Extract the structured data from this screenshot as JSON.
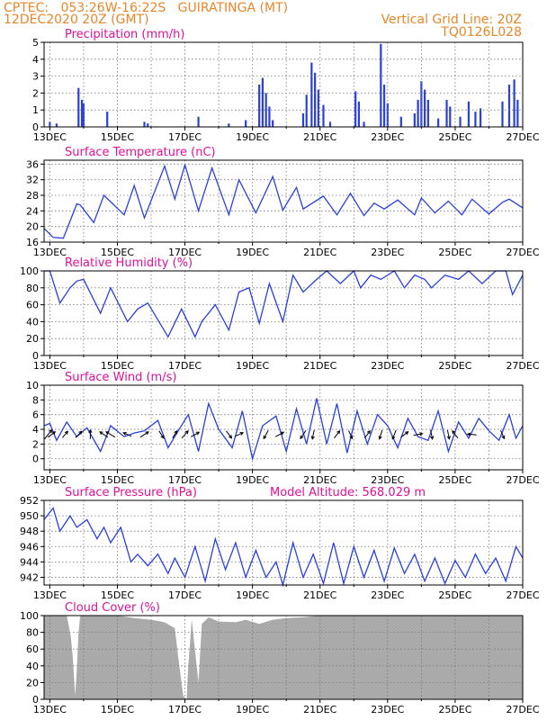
{
  "header": {
    "left_line1": "CPTEC:   053:26W-16:22S   GUIRATINGA (MT)",
    "left_line2": "12DEC2020 20Z (GMT)",
    "right_line1": "Vertical Grid Line: 20Z",
    "right_line2": "TQ0126L028"
  },
  "colors": {
    "series": "#2a3fe0",
    "bars": "#2a3fe0",
    "cloud": "#aaaaaa",
    "title": "#e0109a",
    "header": "#e8862a"
  },
  "chart_data": [
    {
      "type": "bar",
      "title": "Precipitation (mm/h)",
      "x_tick_labels": [
        "13DEC",
        "15DEC",
        "17DEC",
        "19DEC",
        "21DEC",
        "23DEC",
        "25DEC",
        "27DEC"
      ],
      "xlim_days": [
        12.83,
        27.0
      ],
      "ylim": [
        0,
        5
      ],
      "yticks": [
        0,
        1,
        2,
        3,
        4,
        5
      ],
      "grid": true,
      "bars": [
        [
          13.0,
          0.3
        ],
        [
          13.2,
          0.2
        ],
        [
          13.85,
          2.3
        ],
        [
          13.95,
          1.6
        ],
        [
          14.0,
          1.4
        ],
        [
          14.7,
          0.9
        ],
        [
          15.8,
          0.3
        ],
        [
          15.9,
          0.2
        ],
        [
          17.4,
          0.6
        ],
        [
          18.3,
          0.2
        ],
        [
          18.8,
          0.4
        ],
        [
          19.2,
          2.5
        ],
        [
          19.3,
          2.9
        ],
        [
          19.4,
          2.0
        ],
        [
          19.5,
          1.2
        ],
        [
          19.6,
          0.4
        ],
        [
          20.5,
          0.8
        ],
        [
          20.6,
          1.9
        ],
        [
          20.75,
          3.8
        ],
        [
          20.85,
          3.2
        ],
        [
          20.95,
          2.2
        ],
        [
          21.1,
          1.3
        ],
        [
          21.3,
          0.3
        ],
        [
          22.05,
          2.1
        ],
        [
          22.15,
          1.5
        ],
        [
          22.3,
          0.3
        ],
        [
          22.8,
          4.9
        ],
        [
          22.9,
          2.5
        ],
        [
          23.0,
          1.4
        ],
        [
          23.4,
          0.6
        ],
        [
          23.8,
          0.8
        ],
        [
          23.9,
          1.6
        ],
        [
          24.0,
          2.7
        ],
        [
          24.1,
          2.2
        ],
        [
          24.2,
          1.6
        ],
        [
          24.5,
          0.5
        ],
        [
          24.75,
          1.6
        ],
        [
          24.85,
          1.2
        ],
        [
          25.15,
          0.6
        ],
        [
          25.4,
          1.5
        ],
        [
          25.6,
          0.9
        ],
        [
          25.75,
          1.1
        ],
        [
          26.4,
          1.5
        ],
        [
          26.6,
          2.5
        ],
        [
          26.75,
          2.8
        ],
        [
          26.85,
          1.6
        ]
      ]
    },
    {
      "type": "line",
      "title": "Surface Temperature (nC)",
      "x_tick_labels": [
        "13DEC",
        "15DEC",
        "17DEC",
        "19DEC",
        "21DEC",
        "23DEC",
        "25DEC",
        "27DEC"
      ],
      "xlim_days": [
        12.83,
        27.0
      ],
      "ylim": [
        16,
        37
      ],
      "yticks": [
        16,
        20,
        24,
        28,
        32,
        36
      ],
      "grid": true,
      "series": [
        {
          "x": [
            12.83,
            13.1,
            13.4,
            13.8,
            13.9,
            14.3,
            14.6,
            15.2,
            15.5,
            15.8,
            16.4,
            16.7,
            17.0,
            17.4,
            17.8,
            18.3,
            18.6,
            19.1,
            19.6,
            19.9,
            20.3,
            20.5,
            21.1,
            21.5,
            21.9,
            22.3,
            22.6,
            22.9,
            23.3,
            23.8,
            24.0,
            24.4,
            24.8,
            25.2,
            25.5,
            26.0,
            26.4,
            26.6,
            27.0
          ],
          "y": [
            19.5,
            17.2,
            17.0,
            25.8,
            25.5,
            21.0,
            28.0,
            23.0,
            30.5,
            22.2,
            35.5,
            27.0,
            35.8,
            24.0,
            35.0,
            23.0,
            32.0,
            23.5,
            32.8,
            24.2,
            30.0,
            24.5,
            27.8,
            23.0,
            28.5,
            22.8,
            26.0,
            24.5,
            26.8,
            23.0,
            27.3,
            23.5,
            26.5,
            23.0,
            27.0,
            23.2,
            26.2,
            27.0,
            24.8
          ]
        }
      ]
    },
    {
      "type": "line",
      "title": "Relative Humidity (%)",
      "x_tick_labels": [
        "13DEC",
        "15DEC",
        "17DEC",
        "19DEC",
        "21DEC",
        "23DEC",
        "25DEC",
        "27DEC"
      ],
      "xlim_days": [
        12.83,
        27.0
      ],
      "ylim": [
        0,
        100
      ],
      "yticks": [
        0,
        20,
        40,
        60,
        80,
        100
      ],
      "grid": true,
      "series": [
        {
          "x": [
            12.83,
            13.0,
            13.3,
            13.6,
            13.8,
            14.0,
            14.5,
            14.8,
            15.3,
            15.6,
            15.9,
            16.5,
            16.9,
            17.3,
            17.5,
            17.9,
            18.3,
            18.6,
            18.9,
            19.2,
            19.5,
            19.9,
            20.2,
            20.5,
            20.9,
            21.2,
            21.6,
            22.0,
            22.2,
            22.5,
            22.8,
            23.2,
            23.5,
            23.8,
            24.1,
            24.3,
            24.7,
            25.1,
            25.4,
            25.8,
            26.2,
            26.5,
            26.7,
            27.0
          ],
          "y": [
            100,
            100,
            62,
            80,
            88,
            90,
            50,
            80,
            40,
            55,
            62,
            22,
            55,
            22,
            40,
            60,
            30,
            75,
            80,
            38,
            85,
            40,
            95,
            75,
            90,
            100,
            85,
            100,
            80,
            95,
            90,
            100,
            80,
            95,
            90,
            80,
            95,
            90,
            100,
            85,
            100,
            100,
            72,
            95
          ]
        }
      ]
    },
    {
      "type": "line",
      "title": "Surface Wind (m/s)",
      "x_tick_labels": [
        "13DEC",
        "15DEC",
        "17DEC",
        "19DEC",
        "21DEC",
        "23DEC",
        "25DEC",
        "27DEC"
      ],
      "xlim_days": [
        12.83,
        27.0
      ],
      "ylim": [
        -1.5,
        10
      ],
      "yticks": [
        0,
        2,
        4,
        6,
        8,
        10
      ],
      "grid": true,
      "series": [
        {
          "x": [
            12.83,
            13.0,
            13.2,
            13.5,
            13.8,
            14.1,
            14.5,
            14.8,
            15.2,
            15.5,
            15.8,
            16.2,
            16.5,
            16.8,
            17.1,
            17.4,
            17.7,
            18.0,
            18.4,
            18.7,
            19.0,
            19.3,
            19.7,
            20.0,
            20.3,
            20.6,
            20.9,
            21.2,
            21.5,
            21.8,
            22.1,
            22.4,
            22.7,
            23.0,
            23.3,
            23.6,
            23.9,
            24.2,
            24.5,
            24.8,
            25.1,
            25.4,
            25.7,
            26.0,
            26.3,
            26.6,
            26.8,
            27.0
          ],
          "y": [
            4.5,
            4.8,
            2.5,
            5.0,
            3.0,
            4.2,
            1.0,
            4.5,
            3.0,
            3.5,
            3.8,
            5.2,
            1.5,
            3.8,
            6.0,
            1.0,
            7.5,
            4.0,
            1.5,
            6.5,
            0.0,
            4.5,
            5.8,
            1.0,
            6.8,
            2.0,
            8.2,
            2.0,
            7.5,
            0.8,
            6.5,
            2.0,
            6.0,
            4.5,
            1.5,
            5.5,
            3.0,
            2.5,
            6.5,
            1.0,
            5.0,
            2.8,
            5.5,
            3.8,
            2.5,
            6.0,
            2.8,
            4.5
          ]
        }
      ],
      "vectors": [
        [
          12.95,
          0.8,
          1.0
        ],
        [
          13.05,
          0.8,
          0.6
        ],
        [
          13.45,
          0.6,
          0.7
        ],
        [
          13.85,
          0.7,
          0.7
        ],
        [
          14.2,
          0.0,
          1.0
        ],
        [
          14.6,
          -0.9,
          0.6
        ],
        [
          14.8,
          -1.0,
          0.6
        ],
        [
          15.3,
          -0.9,
          0.4
        ],
        [
          15.8,
          0.9,
          0.6
        ],
        [
          16.3,
          0.5,
          -0.8
        ],
        [
          16.7,
          0.5,
          0.8
        ],
        [
          17.0,
          0.7,
          0.8
        ],
        [
          17.3,
          0.9,
          0.5
        ],
        [
          18.3,
          0.6,
          -0.8
        ],
        [
          18.6,
          0.9,
          0.4
        ],
        [
          19.4,
          -0.5,
          -0.9
        ],
        [
          19.8,
          0.9,
          0.5
        ],
        [
          20.5,
          -0.6,
          -0.9
        ],
        [
          20.8,
          -0.2,
          -1.0
        ],
        [
          21.5,
          0.6,
          0.8
        ],
        [
          21.9,
          0.4,
          -0.9
        ],
        [
          22.4,
          0.6,
          0.8
        ],
        [
          22.8,
          -0.3,
          -1.0
        ],
        [
          23.2,
          -0.4,
          -1.0
        ],
        [
          23.5,
          0.8,
          0.6
        ],
        [
          23.9,
          1.0,
          0.2
        ],
        [
          24.3,
          0.2,
          -1.0
        ],
        [
          24.8,
          0.2,
          -1.0
        ],
        [
          25.0,
          -0.6,
          0.8
        ],
        [
          25.5,
          -1.0,
          0.1
        ],
        [
          26.4,
          0.4,
          -0.9
        ]
      ]
    },
    {
      "type": "line",
      "title": "Surface Pressure (hPa)",
      "annotation": "Model Altitude: 568.029 m",
      "x_tick_labels": [
        "13DEC",
        "15DEC",
        "17DEC",
        "19DEC",
        "21DEC",
        "23DEC",
        "25DEC",
        "27DEC"
      ],
      "xlim_days": [
        12.83,
        27.0
      ],
      "ylim": [
        941,
        952
      ],
      "yticks": [
        942,
        944,
        946,
        948,
        950,
        952
      ],
      "grid": true,
      "series": [
        {
          "x": [
            12.83,
            13.1,
            13.3,
            13.6,
            13.8,
            14.1,
            14.4,
            14.6,
            14.8,
            15.1,
            15.4,
            15.6,
            15.9,
            16.2,
            16.5,
            16.7,
            17.0,
            17.3,
            17.6,
            17.9,
            18.2,
            18.5,
            18.8,
            19.1,
            19.4,
            19.7,
            19.9,
            20.2,
            20.5,
            20.8,
            21.1,
            21.4,
            21.7,
            22.0,
            22.3,
            22.6,
            22.9,
            23.2,
            23.5,
            23.8,
            24.1,
            24.4,
            24.7,
            25.0,
            25.3,
            25.6,
            25.9,
            26.2,
            26.5,
            26.8,
            27.0
          ],
          "y": [
            949.5,
            951.0,
            948.0,
            950.0,
            948.5,
            949.5,
            947.0,
            948.5,
            946.5,
            948.5,
            944.0,
            945.0,
            943.5,
            945.0,
            942.5,
            944.5,
            942.0,
            946.0,
            941.5,
            947.0,
            943.0,
            946.5,
            942.0,
            945.5,
            942.0,
            944.0,
            941.0,
            946.5,
            942.0,
            945.0,
            941.2,
            946.5,
            941.2,
            946.0,
            942.0,
            945.5,
            941.5,
            945.8,
            942.5,
            945.0,
            941.5,
            944.5,
            941.2,
            944.2,
            942.0,
            945.0,
            942.5,
            944.5,
            941.5,
            946.0,
            944.5
          ]
        }
      ]
    },
    {
      "type": "bar",
      "title": "Cloud Cover (%)",
      "x_tick_labels": [
        "13DEC",
        "15DEC",
        "17DEC",
        "19DEC",
        "21DEC",
        "23DEC",
        "25DEC",
        "27DEC"
      ],
      "xlim_days": [
        12.83,
        27.0
      ],
      "ylim": [
        0,
        100
      ],
      "yticks": [
        0,
        20,
        40,
        60,
        80,
        100
      ],
      "grid": true,
      "profile": [
        [
          12.83,
          100
        ],
        [
          13.5,
          100
        ],
        [
          13.62,
          75
        ],
        [
          13.68,
          50
        ],
        [
          13.75,
          4
        ],
        [
          13.8,
          35
        ],
        [
          13.85,
          80
        ],
        [
          13.9,
          100
        ],
        [
          15.0,
          100
        ],
        [
          15.5,
          97
        ],
        [
          16.0,
          95
        ],
        [
          16.4,
          92
        ],
        [
          16.7,
          85
        ],
        [
          16.85,
          35
        ],
        [
          16.95,
          4
        ],
        [
          17.05,
          0
        ],
        [
          17.1,
          40
        ],
        [
          17.2,
          95
        ],
        [
          17.4,
          20
        ],
        [
          17.5,
          90
        ],
        [
          17.7,
          98
        ],
        [
          18.0,
          93
        ],
        [
          18.5,
          92
        ],
        [
          18.8,
          95
        ],
        [
          19.2,
          90
        ],
        [
          19.6,
          95
        ],
        [
          20.0,
          97
        ],
        [
          20.5,
          98
        ],
        [
          21.0,
          100
        ],
        [
          27.0,
          100
        ]
      ]
    }
  ]
}
